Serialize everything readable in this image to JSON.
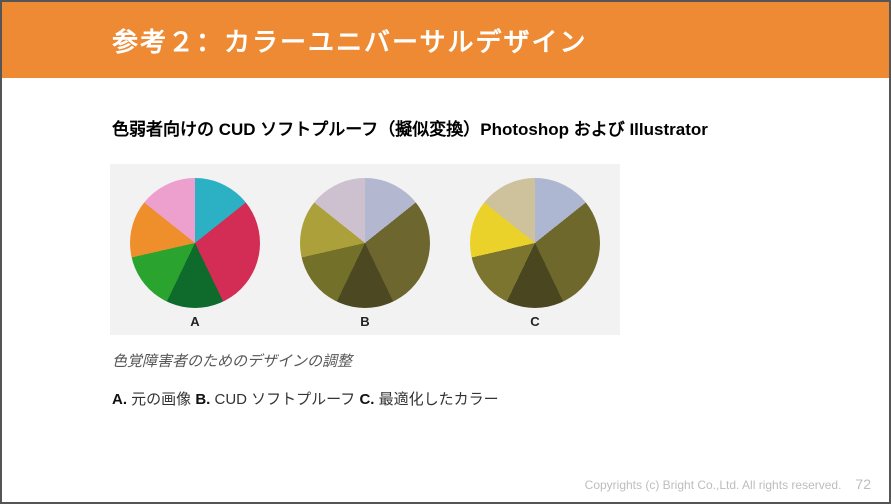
{
  "header": {
    "title": "参考２：カラーユニバーサルデザイン",
    "bg_color": "#ee8a33",
    "text_color": "#ffffff"
  },
  "subtitle": "色弱者向けの CUD ソフトプルーフ（擬似変換）Photoshop および Illustrator",
  "charts": {
    "panel_bg": "#f2f2f2",
    "pies": [
      {
        "label": "A",
        "slices": [
          {
            "color": "#2bb0c4",
            "value": 14.3
          },
          {
            "color": "#d42d55",
            "value": 28.6
          },
          {
            "color": "#0e6b2c",
            "value": 14.3
          },
          {
            "color": "#2aa32f",
            "value": 14.3
          },
          {
            "color": "#ee8f2b",
            "value": 14.3
          },
          {
            "color": "#eda0ce",
            "value": 14.3
          }
        ]
      },
      {
        "label": "B",
        "slices": [
          {
            "color": "#b4b7d0",
            "value": 14.3
          },
          {
            "color": "#6d662f",
            "value": 28.6
          },
          {
            "color": "#4c4822",
            "value": 14.3
          },
          {
            "color": "#737129",
            "value": 14.3
          },
          {
            "color": "#aba03a",
            "value": 14.3
          },
          {
            "color": "#cdc1cf",
            "value": 14.3
          }
        ]
      },
      {
        "label": "C",
        "slices": [
          {
            "color": "#aeb7d1",
            "value": 14.3
          },
          {
            "color": "#6f682c",
            "value": 28.6
          },
          {
            "color": "#4a4720",
            "value": 14.3
          },
          {
            "color": "#7b7530",
            "value": 14.3
          },
          {
            "color": "#ebd22b",
            "value": 14.3
          },
          {
            "color": "#cdc29c",
            "value": 14.3
          }
        ]
      }
    ]
  },
  "caption_italic": "色覚障害者のためのデザインの調整",
  "caption_parts": {
    "a_label": "A.",
    "a_text": " 元の画像 ",
    "b_label": "B.",
    "b_text": " CUD ソフトプルーフ ",
    "c_label": "C.",
    "c_text": " 最適化したカラー"
  },
  "footer": {
    "copyright": "Copyrights (c) Bright Co.,Ltd. All rights reserved.",
    "page": "72"
  }
}
